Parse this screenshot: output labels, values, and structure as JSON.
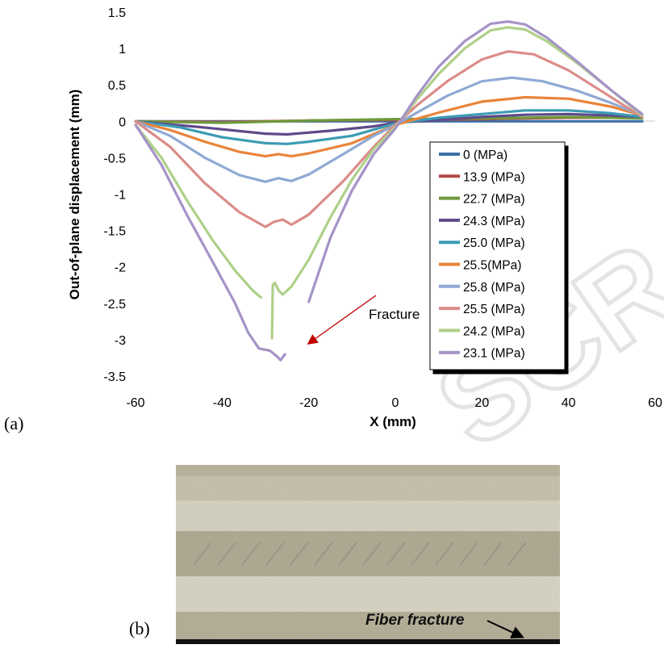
{
  "chart_data": {
    "type": "line",
    "xlabel": "X (mm)",
    "ylabel": "Out-of-plane  displacement  (mm)",
    "xlim": [
      -60,
      60
    ],
    "ylim": [
      -3.5,
      1.5
    ],
    "xticks": [
      "-60",
      "-40",
      "-20",
      "0",
      "20",
      "40",
      "60"
    ],
    "yticks": [
      "1.5",
      "1",
      "0.5",
      "0",
      "-0.5",
      "-1",
      "-1.5",
      "-2",
      "-2.5",
      "-3",
      "-3.5"
    ],
    "legend_position": "lower-right inside plot",
    "series": [
      {
        "name": "0 (MPa)",
        "color": "#3f6fa6",
        "segments": [
          [
            [
              -60,
              0
            ],
            [
              -30,
              0
            ],
            [
              0,
              0
            ],
            [
              30,
              0
            ],
            [
              57,
              0
            ]
          ]
        ]
      },
      {
        "name": "13.9 (MPa)",
        "color": "#b04a44",
        "segments": [
          [
            [
              -60,
              0
            ],
            [
              -40,
              -0.01
            ],
            [
              -20,
              0.01
            ],
            [
              0,
              0.02
            ],
            [
              20,
              0.03
            ],
            [
              40,
              0.05
            ],
            [
              57,
              0.05
            ]
          ]
        ]
      },
      {
        "name": "22.7 (MPa)",
        "color": "#6f9a3c",
        "segments": [
          [
            [
              -60,
              0
            ],
            [
              -40,
              -0.02
            ],
            [
              -20,
              0.01
            ],
            [
              0,
              0.03
            ],
            [
              20,
              0.04
            ],
            [
              40,
              0.06
            ],
            [
              57,
              0.04
            ]
          ]
        ]
      },
      {
        "name": "24.3 (MPa)",
        "color": "#5e4a8a",
        "segments": [
          [
            [
              -60,
              0
            ],
            [
              -45,
              -0.08
            ],
            [
              -30,
              -0.17
            ],
            [
              -25,
              -0.18
            ],
            [
              -15,
              -0.13
            ],
            [
              -5,
              -0.07
            ],
            [
              0,
              -0.02
            ],
            [
              10,
              0.02
            ],
            [
              20,
              0.06
            ],
            [
              30,
              0.09
            ],
            [
              40,
              0.1
            ],
            [
              50,
              0.08
            ],
            [
              57,
              0.06
            ]
          ]
        ]
      },
      {
        "name": "25.0 (MPa)",
        "color": "#3c9bb4",
        "segments": [
          [
            [
              -60,
              0
            ],
            [
              -50,
              -0.08
            ],
            [
              -40,
              -0.22
            ],
            [
              -30,
              -0.3
            ],
            [
              -25,
              -0.31
            ],
            [
              -20,
              -0.28
            ],
            [
              -10,
              -0.2
            ],
            [
              0,
              -0.03
            ],
            [
              10,
              0.05
            ],
            [
              20,
              0.1
            ],
            [
              30,
              0.15
            ],
            [
              40,
              0.15
            ],
            [
              50,
              0.11
            ],
            [
              57,
              0.06
            ]
          ]
        ]
      },
      {
        "name": "25.5(MPa)",
        "color": "#e8843a",
        "segments": [
          [
            [
              -60,
              0
            ],
            [
              -52,
              -0.12
            ],
            [
              -44,
              -0.28
            ],
            [
              -36,
              -0.42
            ],
            [
              -30,
              -0.48
            ],
            [
              -27,
              -0.45
            ],
            [
              -24,
              -0.48
            ],
            [
              -20,
              -0.44
            ],
            [
              -10,
              -0.3
            ],
            [
              0,
              -0.05
            ],
            [
              10,
              0.12
            ],
            [
              20,
              0.27
            ],
            [
              30,
              0.33
            ],
            [
              40,
              0.31
            ],
            [
              50,
              0.2
            ],
            [
              57,
              0.08
            ]
          ]
        ]
      },
      {
        "name": "25.8 (MPa)",
        "color": "#8fa9d4",
        "segments": [
          [
            [
              -60,
              0
            ],
            [
              -52,
              -0.2
            ],
            [
              -44,
              -0.5
            ],
            [
              -36,
              -0.74
            ],
            [
              -30,
              -0.83
            ],
            [
              -27,
              -0.78
            ],
            [
              -24,
              -0.82
            ],
            [
              -20,
              -0.73
            ],
            [
              -12,
              -0.45
            ],
            [
              -5,
              -0.2
            ],
            [
              0,
              -0.05
            ],
            [
              5,
              0.12
            ],
            [
              12,
              0.35
            ],
            [
              20,
              0.55
            ],
            [
              27,
              0.6
            ],
            [
              34,
              0.55
            ],
            [
              42,
              0.42
            ],
            [
              50,
              0.25
            ],
            [
              57,
              0.08
            ]
          ]
        ]
      },
      {
        "name": "25.5 (MPa)",
        "color": "#db8c89",
        "segments": [
          [
            [
              -60,
              0
            ],
            [
              -52,
              -0.35
            ],
            [
              -44,
              -0.85
            ],
            [
              -36,
              -1.25
            ],
            [
              -30,
              -1.45
            ],
            [
              -28,
              -1.38
            ],
            [
              -26,
              -1.35
            ],
            [
              -24,
              -1.42
            ],
            [
              -20,
              -1.28
            ],
            [
              -12,
              -0.82
            ],
            [
              -5,
              -0.35
            ],
            [
              0,
              -0.05
            ],
            [
              5,
              0.22
            ],
            [
              12,
              0.55
            ],
            [
              20,
              0.85
            ],
            [
              26,
              0.96
            ],
            [
              32,
              0.92
            ],
            [
              40,
              0.7
            ],
            [
              48,
              0.4
            ],
            [
              57,
              0.06
            ]
          ]
        ]
      },
      {
        "name": "24.2 (MPa)",
        "color": "#aed088",
        "segments": [
          [
            [
              -60,
              -0.05
            ],
            [
              -54,
              -0.5
            ],
            [
              -48,
              -1.1
            ],
            [
              -42,
              -1.65
            ],
            [
              -37,
              -2.05
            ],
            [
              -33,
              -2.32
            ],
            [
              -31,
              -2.42
            ]
          ],
          [
            [
              -28.5,
              -2.98
            ],
            [
              -28.3,
              -2.25
            ],
            [
              -27.8,
              -2.22
            ],
            [
              -27,
              -2.32
            ],
            [
              -26,
              -2.38
            ],
            [
              -24,
              -2.27
            ],
            [
              -20,
              -1.9
            ],
            [
              -15,
              -1.32
            ],
            [
              -10,
              -0.8
            ],
            [
              -5,
              -0.38
            ],
            [
              0,
              -0.08
            ],
            [
              5,
              0.3
            ],
            [
              10,
              0.65
            ],
            [
              16,
              1.0
            ],
            [
              22,
              1.25
            ],
            [
              26,
              1.29
            ],
            [
              30,
              1.26
            ],
            [
              35,
              1.1
            ],
            [
              42,
              0.8
            ],
            [
              50,
              0.42
            ],
            [
              57,
              0.08
            ]
          ]
        ]
      },
      {
        "name": "23.1 (MPa)",
        "color": "#a593c7",
        "segments": [
          [
            [
              -60,
              -0.05
            ],
            [
              -54,
              -0.6
            ],
            [
              -48,
              -1.3
            ],
            [
              -42,
              -1.95
            ],
            [
              -37,
              -2.5
            ],
            [
              -34,
              -2.9
            ],
            [
              -31.5,
              -3.12
            ],
            [
              -29,
              -3.15
            ],
            [
              -27.5,
              -3.22
            ],
            [
              -26.5,
              -3.28
            ],
            [
              -25.5,
              -3.2
            ]
          ],
          [
            [
              -20,
              -2.48
            ],
            [
              -15,
              -1.6
            ],
            [
              -10,
              -0.95
            ],
            [
              -5,
              -0.45
            ],
            [
              0,
              -0.1
            ],
            [
              5,
              0.35
            ],
            [
              10,
              0.75
            ],
            [
              16,
              1.1
            ],
            [
              22,
              1.34
            ],
            [
              26,
              1.37
            ],
            [
              30,
              1.33
            ],
            [
              35,
              1.15
            ],
            [
              42,
              0.82
            ],
            [
              50,
              0.42
            ],
            [
              57,
              0.1
            ]
          ]
        ]
      }
    ],
    "annotations": {
      "fracture_label": "Fracture",
      "fracture_arrow_tip": {
        "x": -20,
        "y": -3.05
      },
      "panel_a": "(a)"
    }
  },
  "photo": {
    "panel_label": "(b)",
    "caption": "Fiber fracture"
  }
}
